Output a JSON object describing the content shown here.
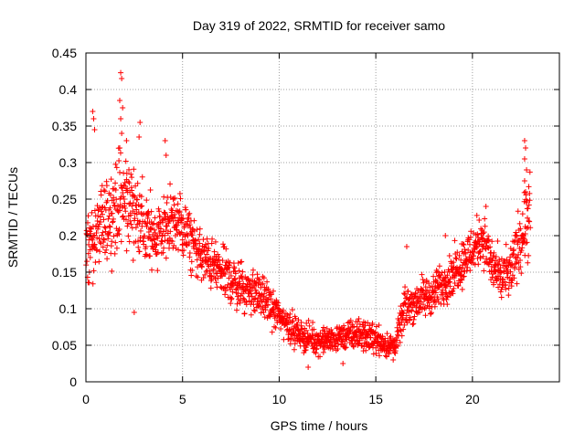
{
  "chart_data": {
    "type": "scatter",
    "title": "Day 319 of 2022, SRMTID for receiver samo",
    "xlabel": "GPS time / hours",
    "ylabel": "SRMTID / TECUs",
    "xlim": [
      0,
      24.5
    ],
    "ylim": [
      0,
      0.45
    ],
    "x_ticks": [
      0,
      5,
      10,
      15,
      20
    ],
    "x_tick_labels": [
      "0",
      "5",
      "10",
      "15",
      "20"
    ],
    "y_ticks": [
      0,
      0.05,
      0.1,
      0.15,
      0.2,
      0.25,
      0.3,
      0.35,
      0.4,
      0.45
    ],
    "y_tick_labels": [
      "0",
      "0.05",
      "0.1",
      "0.15",
      "0.2",
      "0.25",
      "0.3",
      "0.35",
      "0.4",
      "0.45"
    ],
    "grid": true,
    "marker": "+",
    "series": [
      {
        "name": "SRMTID",
        "color": "#ff0000",
        "trend": {
          "hours": [
            0,
            0.5,
            1,
            1.5,
            2,
            2.5,
            3,
            3.5,
            4,
            4.5,
            5,
            6,
            7,
            8,
            9,
            10,
            11,
            12,
            13,
            14,
            15,
            15.5,
            16,
            16.5,
            17,
            18,
            19,
            20,
            20.5,
            21,
            21.5,
            22,
            22.5,
            23
          ],
          "center": [
            0.19,
            0.2,
            0.22,
            0.24,
            0.25,
            0.24,
            0.21,
            0.2,
            0.21,
            0.22,
            0.21,
            0.17,
            0.15,
            0.13,
            0.12,
            0.09,
            0.065,
            0.055,
            0.06,
            0.065,
            0.06,
            0.05,
            0.05,
            0.1,
            0.11,
            0.12,
            0.15,
            0.18,
            0.2,
            0.16,
            0.14,
            0.15,
            0.2,
            0.22
          ],
          "spread": [
            0.07,
            0.08,
            0.08,
            0.09,
            0.1,
            0.09,
            0.08,
            0.07,
            0.07,
            0.07,
            0.06,
            0.05,
            0.05,
            0.05,
            0.04,
            0.035,
            0.03,
            0.025,
            0.025,
            0.03,
            0.03,
            0.025,
            0.02,
            0.04,
            0.04,
            0.04,
            0.045,
            0.05,
            0.05,
            0.05,
            0.05,
            0.05,
            0.07,
            0.09
          ]
        },
        "highlights": [
          {
            "x": 0.35,
            "y": 0.37
          },
          {
            "x": 0.4,
            "y": 0.36
          },
          {
            "x": 0.45,
            "y": 0.345
          },
          {
            "x": 1.8,
            "y": 0.423
          },
          {
            "x": 1.85,
            "y": 0.415
          },
          {
            "x": 1.75,
            "y": 0.385
          },
          {
            "x": 1.9,
            "y": 0.375
          },
          {
            "x": 1.8,
            "y": 0.36
          },
          {
            "x": 1.85,
            "y": 0.34
          },
          {
            "x": 1.75,
            "y": 0.32
          },
          {
            "x": 2.1,
            "y": 0.33
          },
          {
            "x": 2.8,
            "y": 0.355
          },
          {
            "x": 2.75,
            "y": 0.335
          },
          {
            "x": 4.1,
            "y": 0.33
          },
          {
            "x": 4.15,
            "y": 0.31
          },
          {
            "x": 2.5,
            "y": 0.095
          },
          {
            "x": 22.7,
            "y": 0.33
          },
          {
            "x": 22.75,
            "y": 0.32
          },
          {
            "x": 22.7,
            "y": 0.305
          },
          {
            "x": 22.8,
            "y": 0.29
          },
          {
            "x": 22.7,
            "y": 0.275
          },
          {
            "x": 22.75,
            "y": 0.26
          },
          {
            "x": 11.5,
            "y": 0.02
          },
          {
            "x": 13.3,
            "y": 0.025
          },
          {
            "x": 15.9,
            "y": 0.03
          },
          {
            "x": 16.6,
            "y": 0.185
          },
          {
            "x": 18.6,
            "y": 0.2
          },
          {
            "x": 20.7,
            "y": 0.24
          }
        ]
      }
    ]
  }
}
